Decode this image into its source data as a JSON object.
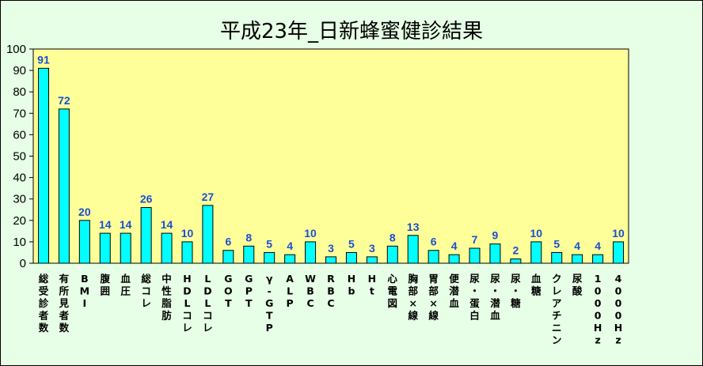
{
  "colors": {
    "background": "#e6ffe6",
    "plot_area": "#ffff99",
    "bar_fill": "#00ffff",
    "data_label": "#1a4fd0"
  },
  "chart_data": {
    "type": "bar",
    "title": "平成23年_日新蜂蜜健診結果",
    "xlabel": "",
    "ylabel": "",
    "ylim": [
      0,
      100
    ],
    "y_ticks": [
      0,
      10,
      20,
      30,
      40,
      50,
      60,
      70,
      80,
      90,
      100
    ],
    "grid": false,
    "legend": "none",
    "categories": [
      "総受診者数",
      "有所見者数",
      "BMI",
      "腹囲",
      "血圧",
      "総コレ",
      "中性脂肪",
      "HDLコレ",
      "LDLコレ",
      "GOT",
      "GPT",
      "γ-GTP",
      "ALP",
      "WBC",
      "RBC",
      "Hb",
      "Ht",
      "心電図",
      "胸部×線",
      "胃部×線",
      "便潜血",
      "尿・蛋白",
      "尿・潜血",
      "尿・糖",
      "血糖",
      "クレアチニン",
      "尿酸",
      "1000Hz",
      "4000Hz"
    ],
    "values": [
      91,
      72,
      20,
      14,
      14,
      26,
      14,
      10,
      27,
      6,
      8,
      5,
      4,
      10,
      3,
      5,
      3,
      8,
      13,
      6,
      4,
      7,
      9,
      2,
      10,
      5,
      4,
      4,
      10
    ]
  }
}
